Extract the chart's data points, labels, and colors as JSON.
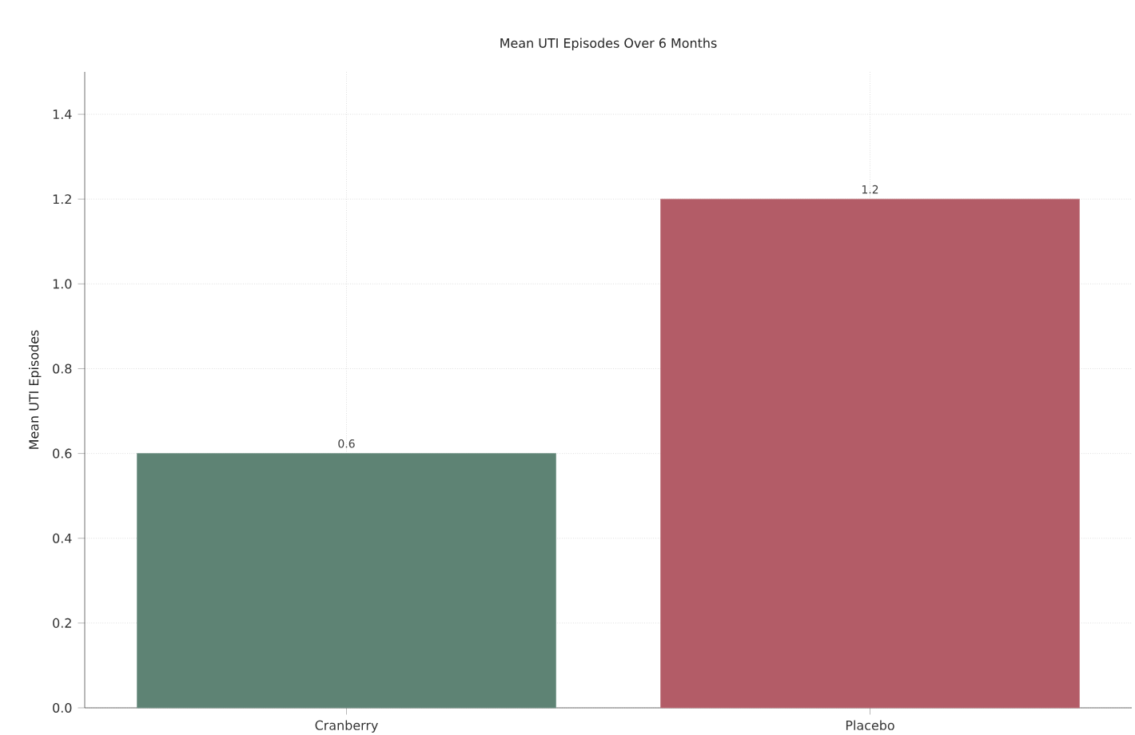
{
  "chart_data": {
    "type": "bar",
    "title": "Mean UTI Episodes Over 6 Months",
    "ylabel": "Mean UTI Episodes",
    "categories": [
      "Cranberry",
      "Placebo"
    ],
    "values": [
      0.6,
      1.2
    ],
    "colors": [
      "#5e8374",
      "#b35c67"
    ],
    "ylim": [
      0,
      1.5
    ],
    "yticks": [
      {
        "value": 0,
        "label": "0.0"
      },
      0.2,
      0.4,
      0.6,
      0.8,
      {
        "value": 1,
        "label": "1.0"
      },
      1.2,
      1.4
    ],
    "data_labels": true,
    "grid": true
  }
}
